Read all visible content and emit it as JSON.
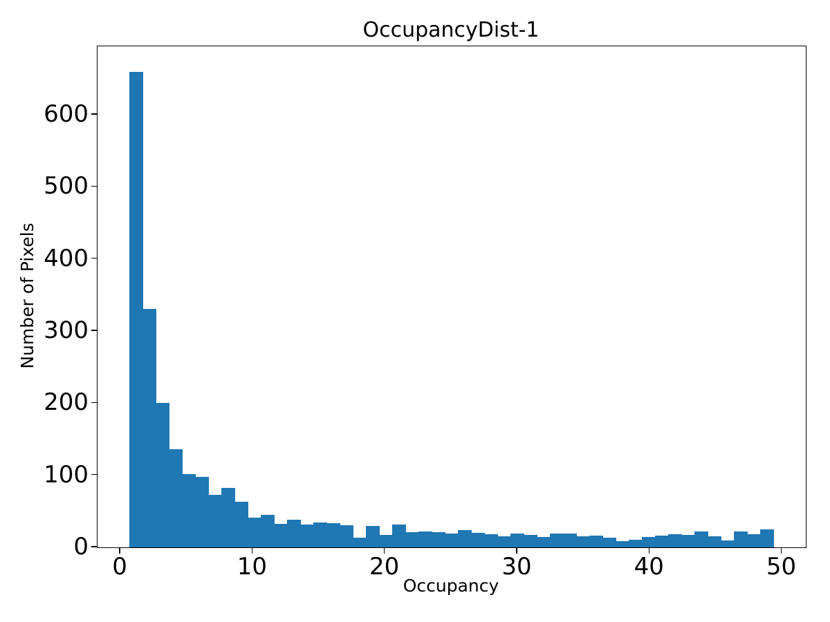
{
  "chart_data": {
    "type": "bar",
    "subtype": "histogram",
    "title": "OccupancyDist-1",
    "xlabel": "Occupancy",
    "ylabel": "Number of Pixels",
    "bar_color": "#1f77b4",
    "axis_color": "#000000",
    "background_color": "#ffffff",
    "grid": false,
    "legend": null,
    "bin_start": 0.68,
    "bin_width": 0.993,
    "counts": [
      660,
      331,
      200,
      136,
      102,
      98,
      73,
      82,
      63,
      41,
      45,
      33,
      38,
      32,
      35,
      34,
      31,
      13,
      30,
      17,
      32,
      21,
      22,
      21,
      19,
      24,
      20,
      18,
      15,
      19,
      17,
      14,
      19,
      19,
      15,
      16,
      13,
      9,
      11,
      14,
      16,
      18,
      17,
      22,
      15,
      10,
      22,
      18,
      25
    ],
    "x_ticks": [
      0,
      10,
      20,
      30,
      40,
      50
    ],
    "y_ticks": [
      0,
      100,
      200,
      300,
      400,
      500,
      600
    ],
    "xlim": [
      -1.73,
      51.8
    ],
    "ylim": [
      0,
      695
    ]
  }
}
